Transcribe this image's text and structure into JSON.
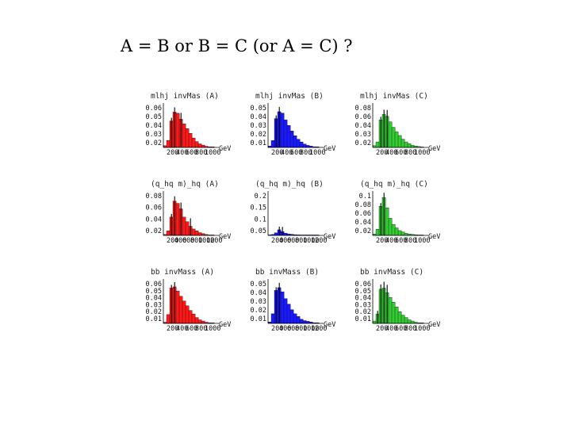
{
  "title": "A = B or B = C (or A = C) ?",
  "unit": "GeV",
  "colors": {
    "A": "#ff1a1a",
    "B": "#1a1aff",
    "C": "#33cc33",
    "line": "#000000"
  },
  "chart_data": [
    {
      "type": "bar",
      "title": "mlhj invMas (A)",
      "color": "#ff1a1a",
      "yticks": [
        "0.06",
        "0.05",
        "0.04",
        "0.03",
        "0.02"
      ],
      "xticks": [
        "200",
        "400",
        "600",
        "800",
        "1000"
      ],
      "xunit": "GeV",
      "values": [
        0.003,
        0.012,
        0.045,
        0.06,
        0.058,
        0.048,
        0.04,
        0.032,
        0.024,
        0.016,
        0.01,
        0.006,
        0.004,
        0.002,
        0.001,
        0.001
      ],
      "black_bins": [
        2,
        3,
        5
      ],
      "ylim": [
        0,
        0.07
      ]
    },
    {
      "type": "bar",
      "title": "mlhj invMas (B)",
      "color": "#1a1aff",
      "yticks": [
        "0.05",
        "0.04",
        "0.03",
        "0.02",
        "0.01"
      ],
      "xticks": [
        "200",
        "400",
        "600",
        "800",
        "1000"
      ],
      "xunit": "GeV",
      "values": [
        0.002,
        0.01,
        0.042,
        0.052,
        0.05,
        0.04,
        0.032,
        0.024,
        0.017,
        0.012,
        0.008,
        0.005,
        0.003,
        0.002,
        0.001,
        0.001
      ],
      "black_bins": [
        2,
        3
      ],
      "ylim": [
        0,
        0.06
      ]
    },
    {
      "type": "bar",
      "title": "mlhj invMas (C)",
      "color": "#33cc33",
      "yticks": [
        "0.08",
        "0.06",
        "0.04",
        "0.03",
        "0.02"
      ],
      "xticks": [
        "200",
        "400",
        "600",
        "800",
        "1000"
      ],
      "xunit": "GeV",
      "values": [
        0.004,
        0.012,
        0.06,
        0.072,
        0.068,
        0.056,
        0.044,
        0.034,
        0.026,
        0.018,
        0.012,
        0.008,
        0.005,
        0.003,
        0.002,
        0.001
      ],
      "black_bins": [
        2,
        3,
        4
      ],
      "ylim": [
        0,
        0.09
      ]
    },
    {
      "type": "bar",
      "title": "(q_hq m)_hq (A)",
      "color": "#ff1a1a",
      "yticks": [
        "0.08",
        "0.06",
        "0.04",
        "0.02"
      ],
      "xticks": [
        "200",
        "400",
        "600",
        "800",
        "1000",
        "1200"
      ],
      "xunit": "GeV",
      "values": [
        0.002,
        0.01,
        0.04,
        0.075,
        0.07,
        0.058,
        0.04,
        0.03,
        0.02,
        0.014,
        0.01,
        0.006,
        0.004,
        0.002,
        0.001,
        0.001
      ],
      "black_bins": [
        2,
        3,
        5,
        8
      ],
      "ylim": [
        0,
        0.09
      ]
    },
    {
      "type": "bar",
      "title": "(q_hq m)_hq (B)",
      "color": "#1a1aff",
      "yticks": [
        "0.2",
        "0.15",
        "0.1",
        "0.05"
      ],
      "xticks": [
        "200",
        "400",
        "600",
        "800",
        "1000",
        "1200"
      ],
      "xunit": "GeV",
      "values": [
        0.001,
        0.005,
        0.014,
        0.03,
        0.02,
        0.012,
        0.008,
        0.006,
        0.004,
        0.003,
        0.002,
        0.002,
        0.001,
        0.001,
        0.001,
        0.001
      ],
      "black_bins": [
        3,
        4
      ],
      "ylim": [
        0,
        0.22
      ]
    },
    {
      "type": "bar",
      "title": "(q_hq m)_hq (C)",
      "color": "#33cc33",
      "yticks": [
        "0.1",
        "0.08",
        "0.06",
        "0.04",
        "0.02"
      ],
      "xticks": [
        "200",
        "400",
        "600",
        "800",
        "1000"
      ],
      "xunit": "GeV",
      "values": [
        0.004,
        0.018,
        0.085,
        0.11,
        0.08,
        0.05,
        0.032,
        0.022,
        0.014,
        0.01,
        0.006,
        0.004,
        0.003,
        0.002,
        0.001,
        0.001
      ],
      "black_bins": [
        2,
        3
      ],
      "ylim": [
        0,
        0.12
      ]
    },
    {
      "type": "bar",
      "title": "bb invMass (A)",
      "color": "#ff1a1a",
      "yticks": [
        "0.06",
        "0.05",
        "0.04",
        "0.03",
        "0.02",
        "0.01"
      ],
      "xticks": [
        "200",
        "400",
        "600",
        "800",
        "1000"
      ],
      "xunit": "GeV",
      "values": [
        0.002,
        0.015,
        0.06,
        0.062,
        0.055,
        0.046,
        0.038,
        0.03,
        0.022,
        0.016,
        0.01,
        0.006,
        0.004,
        0.002,
        0.001,
        0.001
      ],
      "black_bins": [
        2,
        3
      ],
      "ylim": [
        0,
        0.07
      ]
    },
    {
      "type": "bar",
      "title": "bb invMass (B)",
      "color": "#1a1aff",
      "yticks": [
        "0.05",
        "0.04",
        "0.03",
        "0.02",
        "0.01"
      ],
      "xticks": [
        "200",
        "400",
        "600",
        "800",
        "1000",
        "1200"
      ],
      "xunit": "GeV",
      "values": [
        0.002,
        0.014,
        0.048,
        0.052,
        0.046,
        0.036,
        0.028,
        0.02,
        0.014,
        0.01,
        0.006,
        0.004,
        0.003,
        0.002,
        0.001,
        0.001
      ],
      "black_bins": [
        2,
        3
      ],
      "ylim": [
        0,
        0.06
      ]
    },
    {
      "type": "bar",
      "title": "bb invMass (C)",
      "color": "#33cc33",
      "yticks": [
        "0.06",
        "0.05",
        "0.04",
        "0.03",
        "0.02",
        "0.01"
      ],
      "xticks": [
        "200",
        "400",
        "600",
        "800",
        "1000"
      ],
      "xunit": "GeV",
      "values": [
        0.004,
        0.016,
        0.058,
        0.06,
        0.052,
        0.044,
        0.036,
        0.028,
        0.02,
        0.014,
        0.01,
        0.006,
        0.004,
        0.002,
        0.001,
        0.001
      ],
      "black_bins": [
        1,
        2,
        3,
        4
      ],
      "ylim": [
        0,
        0.07
      ]
    }
  ]
}
